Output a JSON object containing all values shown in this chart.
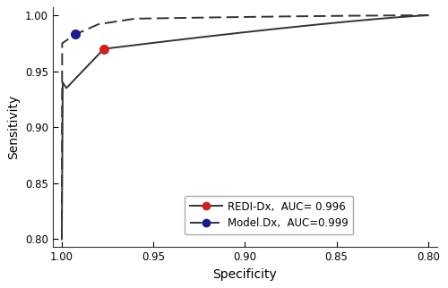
{
  "xlabel": "Specificity",
  "ylabel": "Sensitivity",
  "xlim": [
    1.005,
    0.795
  ],
  "ylim": [
    0.793,
    1.007
  ],
  "yticks": [
    0.8,
    0.85,
    0.9,
    0.95,
    1.0
  ],
  "xticks": [
    1.0,
    0.95,
    0.9,
    0.85,
    0.8
  ],
  "redi_dot": [
    0.977,
    0.97
  ],
  "model_dot": [
    0.9925,
    0.983
  ],
  "redi_color": "#CC2222",
  "model_color": "#1B1B8A",
  "line_color": "#333333",
  "legend_redi": "REDI-Dx,  AUC= 0.996",
  "legend_model": "Model.Dx,  AUC=0.999",
  "background_color": "#ffffff",
  "legend_fontsize": 8.5,
  "axis_fontsize": 10,
  "tick_fontsize": 8.5,
  "linewidth": 1.4,
  "markersize": 7
}
